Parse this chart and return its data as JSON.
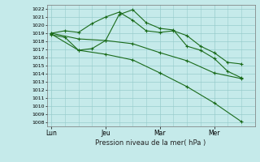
{
  "xlabel": "Pression niveau de la mer( hPa )",
  "bg_color": "#c5eaea",
  "grid_color": "#98cccc",
  "line_color": "#1a6b1a",
  "ylim": [
    1007.5,
    1022.5
  ],
  "yticks": [
    1008,
    1009,
    1010,
    1011,
    1012,
    1013,
    1014,
    1015,
    1016,
    1017,
    1018,
    1019,
    1020,
    1021,
    1022
  ],
  "xtick_labels": [
    "Lun",
    "Jeu",
    "Mar",
    "Mer"
  ],
  "xtick_positions": [
    0,
    24,
    48,
    72
  ],
  "xlim": [
    -2,
    90
  ],
  "vline_positions": [
    0,
    24,
    48,
    72
  ],
  "line1_x": [
    0,
    6,
    12,
    18,
    24,
    30,
    36,
    42,
    48,
    54,
    60,
    66,
    72,
    78,
    84
  ],
  "line1_y": [
    1019.0,
    1019.3,
    1019.1,
    1020.2,
    1021.0,
    1021.6,
    1020.6,
    1019.3,
    1019.1,
    1019.3,
    1018.7,
    1017.4,
    1016.6,
    1015.4,
    1015.2
  ],
  "line2_x": [
    0,
    6,
    12,
    18,
    24,
    30,
    36,
    42,
    48,
    54,
    60,
    66,
    72,
    78,
    84
  ],
  "line2_y": [
    1018.8,
    1018.5,
    1016.9,
    1017.1,
    1018.1,
    1021.3,
    1021.9,
    1020.3,
    1019.6,
    1019.4,
    1017.4,
    1016.9,
    1015.9,
    1014.3,
    1013.5
  ],
  "line3_x": [
    0,
    12,
    24,
    36,
    48,
    60,
    72,
    84
  ],
  "line3_y": [
    1019.0,
    1018.3,
    1018.1,
    1017.7,
    1016.6,
    1015.6,
    1014.1,
    1013.4
  ],
  "line4_x": [
    0,
    12,
    24,
    36,
    48,
    60,
    72,
    84
  ],
  "line4_y": [
    1018.9,
    1016.9,
    1016.4,
    1015.7,
    1014.1,
    1012.4,
    1010.4,
    1008.1
  ]
}
